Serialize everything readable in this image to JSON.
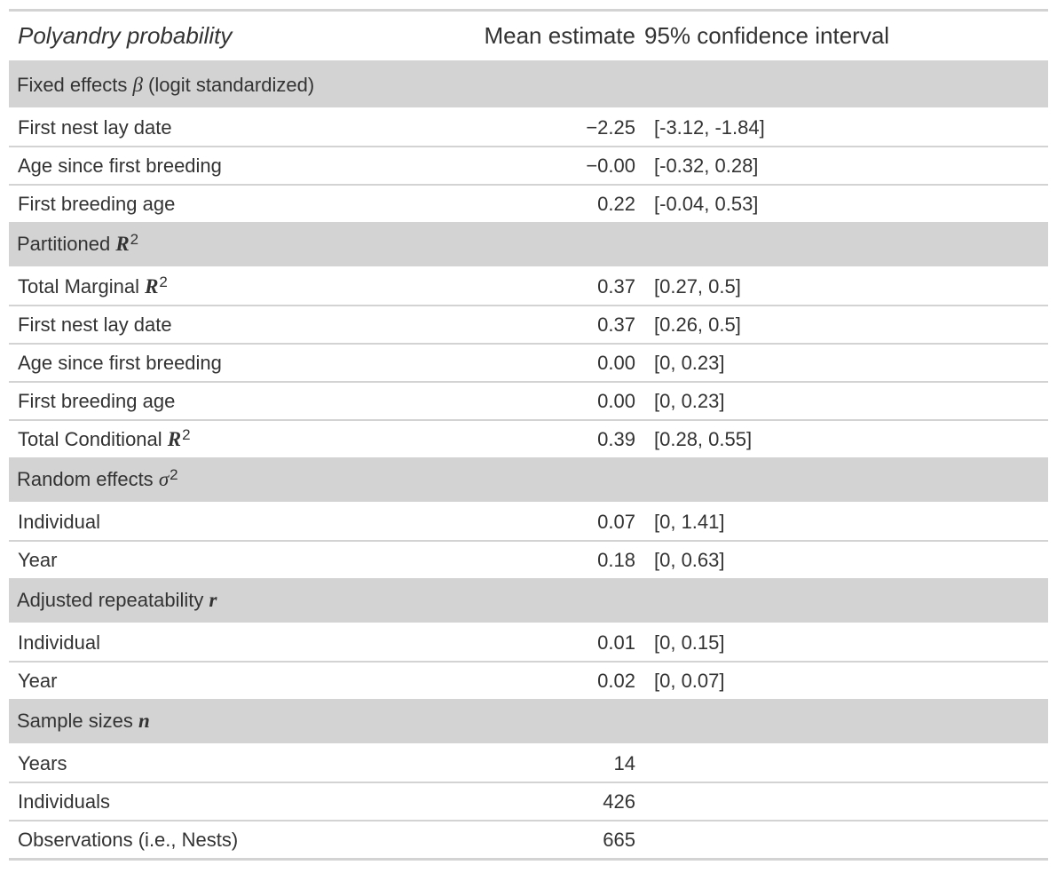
{
  "header": {
    "title": "Polyandry probability",
    "mean_col": "Mean estimate",
    "ci_col": "95% confidence interval"
  },
  "groups": [
    {
      "label": "Fixed effects",
      "symbol": "β",
      "suffix": "(logit standardized)",
      "rows": [
        {
          "label": "First nest lay date",
          "mean": "−2.25",
          "ci": "[-3.12, -1.84]"
        },
        {
          "label": "Age since first breeding",
          "mean": "−0.00",
          "ci": "[-0.32, 0.28]"
        },
        {
          "label": "First breeding age",
          "mean": "0.22",
          "ci": "[-0.04, 0.53]"
        }
      ]
    },
    {
      "label": "Partitioned",
      "symbol": "R",
      "sup": "2",
      "rows": [
        {
          "label": "Total Marginal",
          "symbol": "R",
          "sup": "2",
          "mean": "0.37",
          "ci": "[0.27, 0.5]"
        },
        {
          "label": "First nest lay date",
          "mean": "0.37",
          "ci": "[0.26, 0.5]"
        },
        {
          "label": "Age since first breeding",
          "mean": "0.00",
          "ci": "[0, 0.23]"
        },
        {
          "label": "First breeding age",
          "mean": "0.00",
          "ci": "[0, 0.23]"
        },
        {
          "label": "Total Conditional",
          "symbol": "R",
          "sup": "2",
          "mean": "0.39",
          "ci": "[0.28, 0.55]"
        }
      ]
    },
    {
      "label": "Random effects",
      "symbol": "σ",
      "sup": "2",
      "rows": [
        {
          "label": "Individual",
          "mean": "0.07",
          "ci": "[0, 1.41]"
        },
        {
          "label": "Year",
          "mean": "0.18",
          "ci": "[0, 0.63]"
        }
      ]
    },
    {
      "label": "Adjusted repeatability",
      "symbol": "r",
      "rows": [
        {
          "label": "Individual",
          "mean": "0.01",
          "ci": "[0, 0.15]"
        },
        {
          "label": "Year",
          "mean": "0.02",
          "ci": "[0, 0.07]"
        }
      ]
    },
    {
      "label": "Sample sizes",
      "symbol": "n",
      "rows": [
        {
          "label": "Years",
          "mean": "14",
          "ci": ""
        },
        {
          "label": "Individuals",
          "mean": "426",
          "ci": ""
        },
        {
          "label": "Observations (i.e., Nests)",
          "mean": "665",
          "ci": ""
        }
      ]
    }
  ]
}
